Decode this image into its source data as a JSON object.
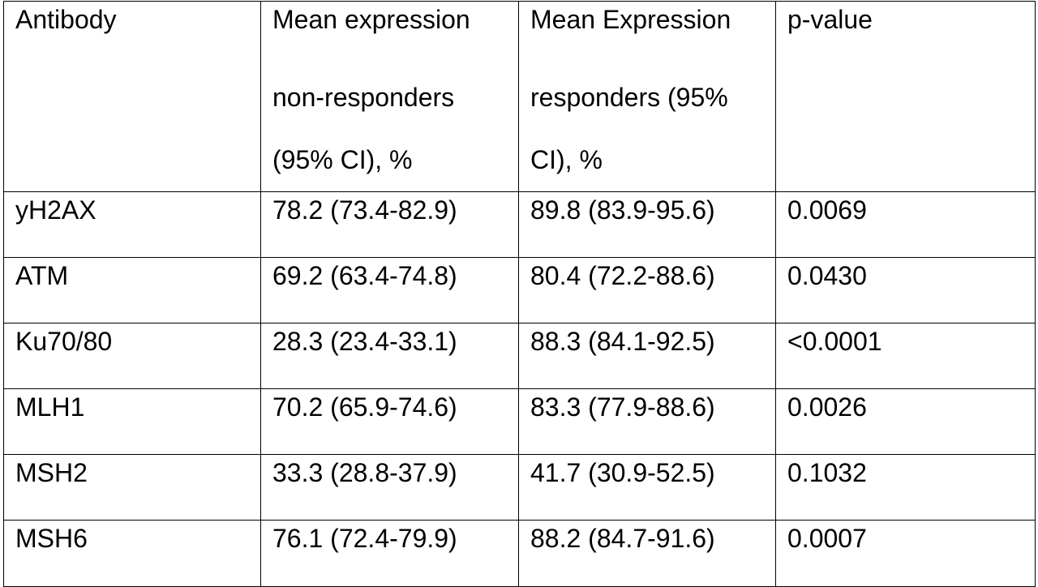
{
  "table": {
    "headers": [
      {
        "lines": [
          "Antibody"
        ]
      },
      {
        "lines": [
          "Mean expression",
          "non-responders",
          "(95% CI), %"
        ]
      },
      {
        "lines": [
          "Mean Expression",
          "responders (95%",
          "CI), %"
        ]
      },
      {
        "lines": [
          "p-value"
        ]
      }
    ],
    "rows": [
      [
        "yH2AX",
        "78.2 (73.4-82.9)",
        "89.8 (83.9-95.6)",
        "0.0069"
      ],
      [
        "ATM",
        "69.2 (63.4-74.8)",
        "80.4 (72.2-88.6)",
        "0.0430"
      ],
      [
        "Ku70/80",
        "28.3 (23.4-33.1)",
        "88.3 (84.1-92.5)",
        "<0.0001"
      ],
      [
        "MLH1",
        "70.2 (65.9-74.6)",
        "83.3 (77.9-88.6)",
        "0.0026"
      ],
      [
        "MSH2",
        "33.3 (28.8-37.9)",
        "41.7 (30.9-52.5)",
        "0.1032"
      ],
      [
        "MSH6",
        "76.1 (72.4-79.9)",
        "88.2 (84.7-91.6)",
        "0.0007"
      ]
    ]
  }
}
